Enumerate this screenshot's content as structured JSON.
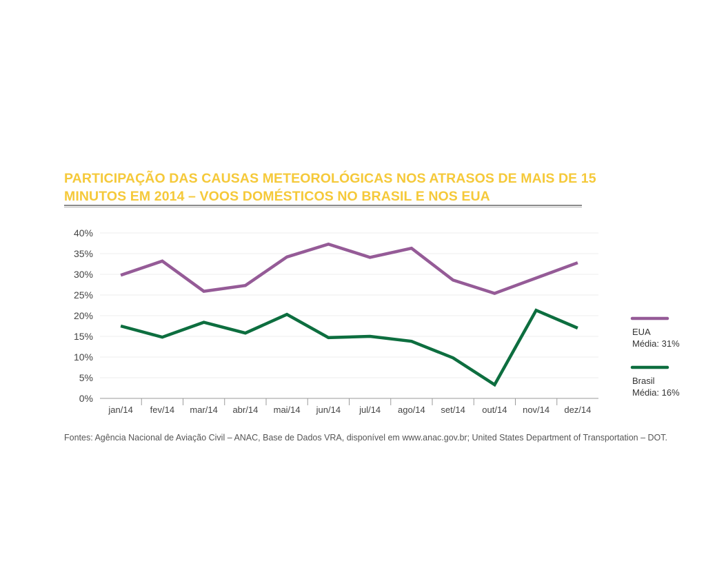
{
  "title": "PARTICIPAÇÃO DAS CAUSAS METEOROLÓGICAS NOS ATRASOS DE MAIS DE 15 MINUTOS EM 2014 – VOOS DOMÉSTICOS NO BRASIL E NOS EUA",
  "source": "Fontes: Agência Nacional de Aviação Civil – ANAC, Base de Dados VRA, disponível em www.anac.gov.br; United States Department of Transportation – DOT.",
  "colors": {
    "title": "#f5c93a",
    "eua": "#955b97",
    "brasil": "#0d6e3f"
  },
  "chart_data": {
    "type": "line",
    "categories": [
      "jan/14",
      "fev/14",
      "mar/14",
      "abr/14",
      "mai/14",
      "jun/14",
      "jul/14",
      "ago/14",
      "set/14",
      "out/14",
      "nov/14",
      "dez/14"
    ],
    "yticks": [
      "0%",
      "5%",
      "10%",
      "15%",
      "20%",
      "25%",
      "30%",
      "35%",
      "40%"
    ],
    "ylim": [
      0,
      40
    ],
    "grid": true,
    "legend_position": "right",
    "series": [
      {
        "name": "EUA",
        "avg_label": "Média: 31%",
        "color": "#955b97",
        "values": [
          29.8,
          33.2,
          25.9,
          27.3,
          34.2,
          37.3,
          34.1,
          36.3,
          28.6,
          25.4,
          29.1,
          32.8
        ]
      },
      {
        "name": "Brasil",
        "avg_label": "Média: 16%",
        "color": "#0d6e3f",
        "values": [
          17.5,
          14.8,
          18.4,
          15.8,
          20.3,
          14.7,
          15.0,
          13.8,
          9.8,
          3.3,
          21.3,
          17.0
        ]
      }
    ]
  }
}
